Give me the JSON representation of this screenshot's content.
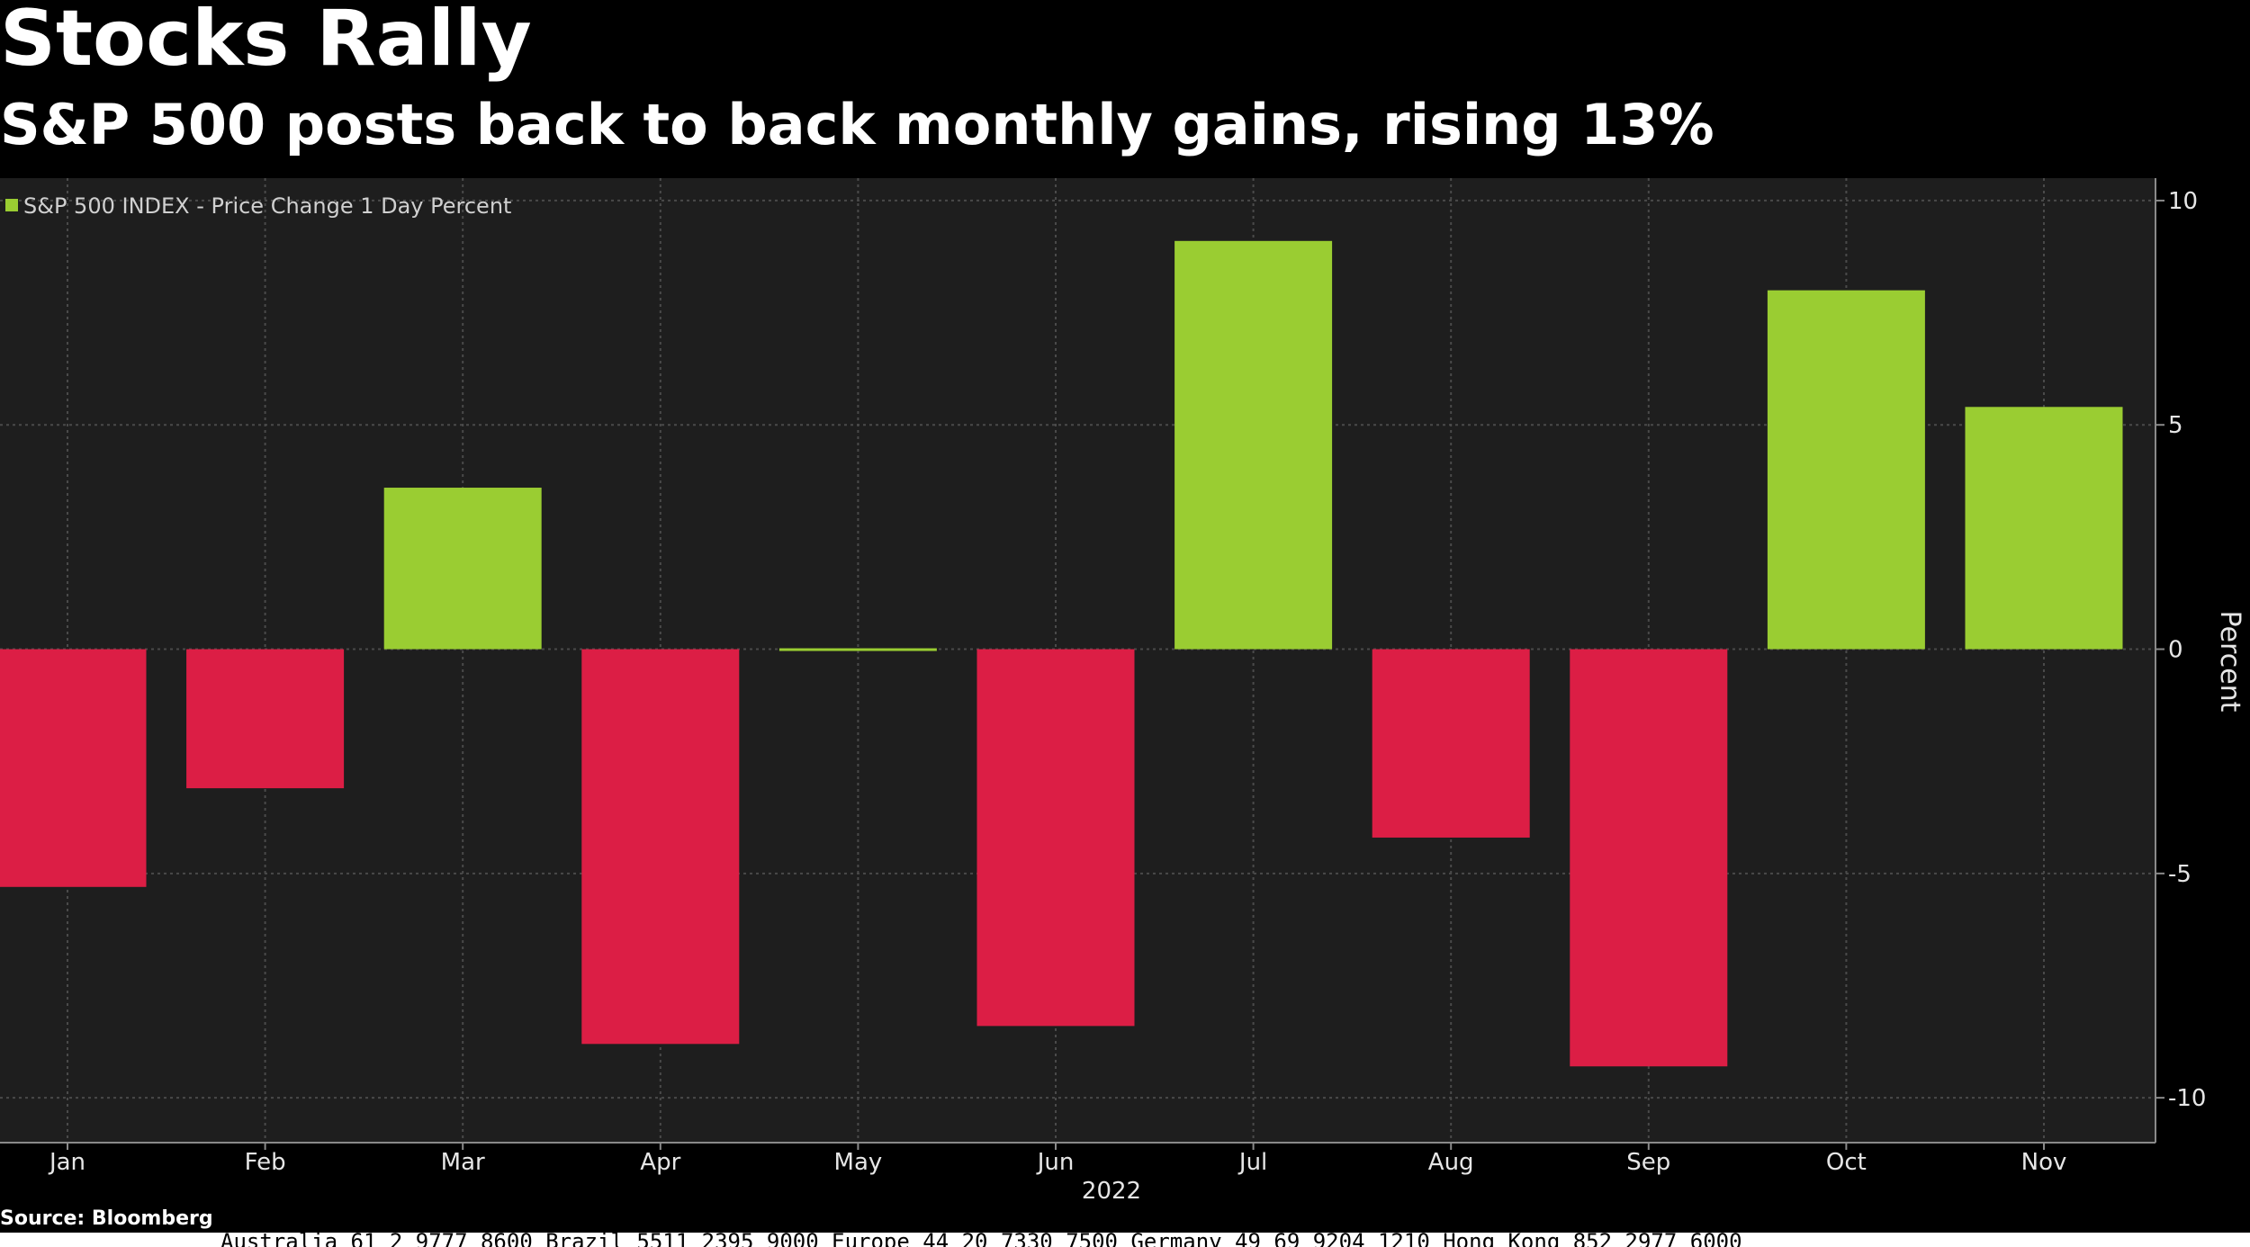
{
  "header": {
    "title": "Stocks Rally",
    "subtitle": "S&P 500 posts back to back monthly gains, rising 13%"
  },
  "footer": {
    "source": "Source: Bloomberg",
    "contacts": "Australia 61 2 9777 8600 Brazil 5511 2395 9000 Europe 44 20 7330 7500 Germany 49 69 9204 1210 Hong Kong 852 2977 6000"
  },
  "colors": {
    "positive": "#9ACD32",
    "negative": "#DC1E45",
    "background": "#1e1e1e"
  },
  "chart_data": {
    "type": "bar",
    "categories": [
      "Jan",
      "Feb",
      "Mar",
      "Apr",
      "May",
      "Jun",
      "Jul",
      "Aug",
      "Sep",
      "Oct",
      "Nov"
    ],
    "series": [
      {
        "name": "S&P 500 INDEX - Price Change 1 Day Percent",
        "values": [
          -5.3,
          -3.1,
          3.6,
          -8.8,
          0.0,
          -8.4,
          9.1,
          -4.2,
          -9.3,
          8.0,
          5.4
        ]
      }
    ],
    "xlabel": "2022",
    "ylabel": "Percent",
    "ylim": [
      -11,
      10.5
    ],
    "yticks": [
      "10",
      "5",
      "0",
      "-5",
      "-10"
    ],
    "grid": true,
    "legend": "top-left"
  }
}
